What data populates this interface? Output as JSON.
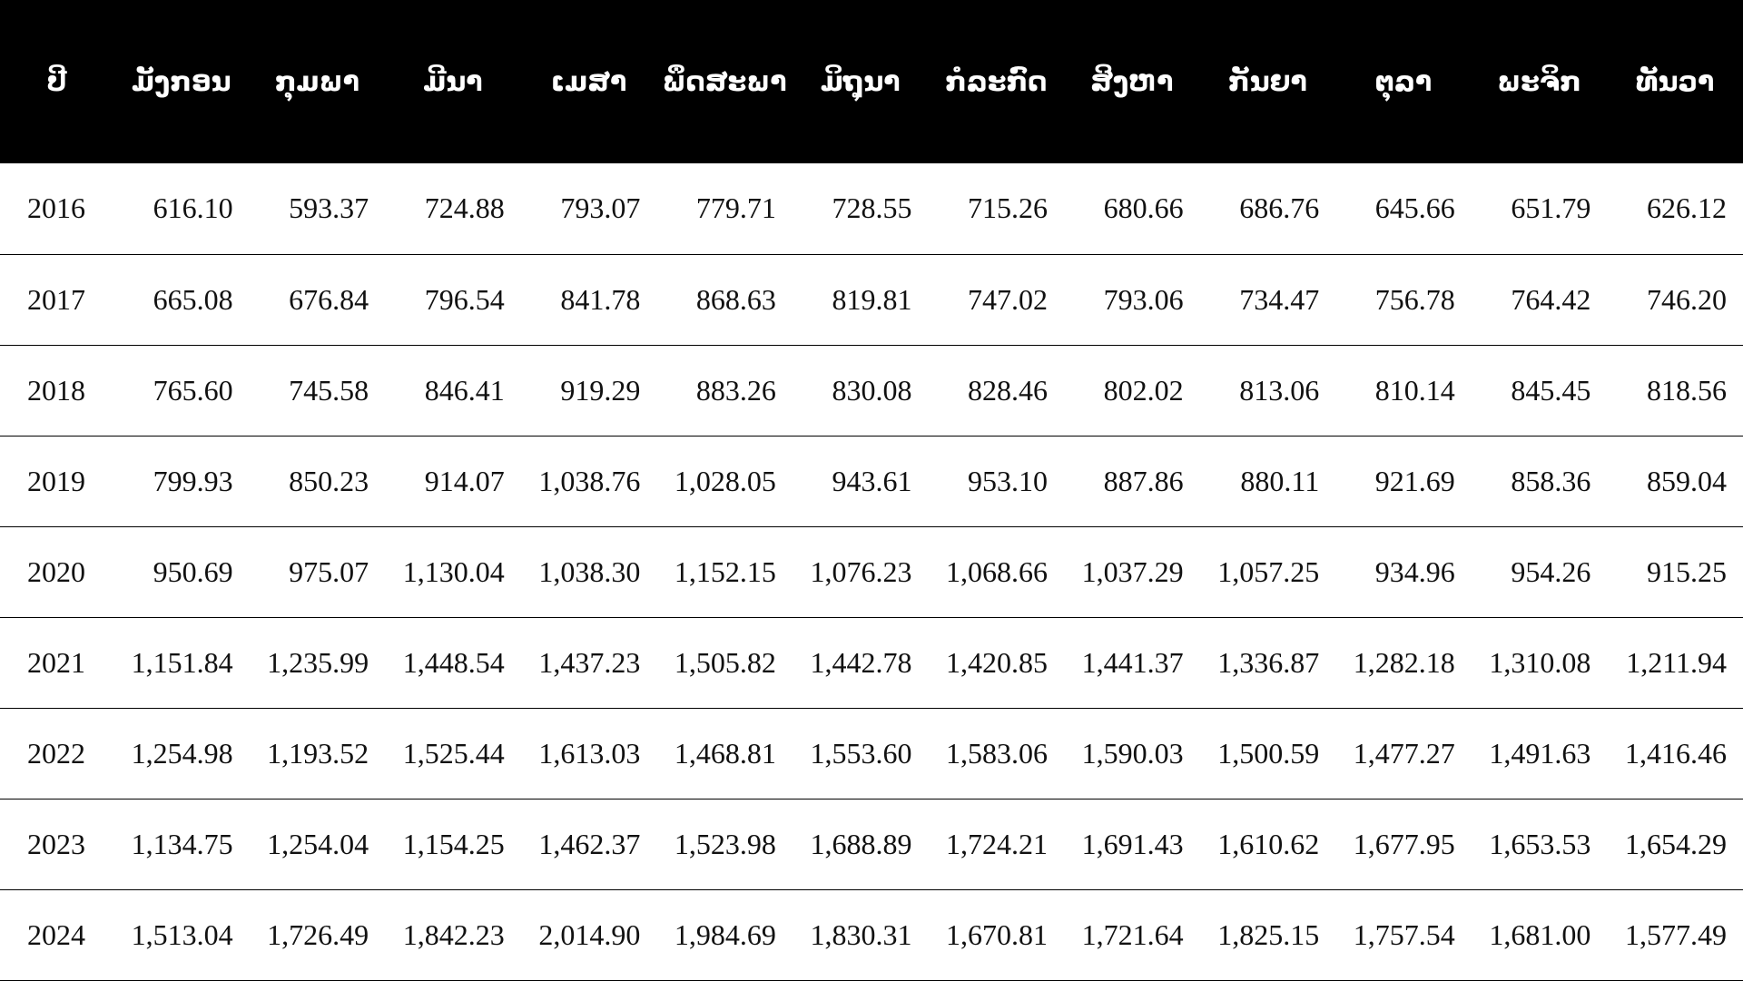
{
  "colors": {
    "header_bg": "#000000",
    "header_text": "#ffffff",
    "row_border": "#000000",
    "cell_text": "#111111"
  },
  "chart_data": {
    "type": "table",
    "columns": [
      "ປີ",
      "ມັງກອນ",
      "ກຸມພາ",
      "ມີນາ",
      "ເມສາ",
      "ພຶດສະພາ",
      "ມິຖຸນາ",
      "ກໍລະກົດ",
      "ສິງຫາ",
      "ກັນຍາ",
      "ຕຸລາ",
      "ພະຈິກ",
      "ທັນວາ"
    ],
    "rows": [
      [
        "2016",
        "616.10",
        "593.37",
        "724.88",
        "793.07",
        "779.71",
        "728.55",
        "715.26",
        "680.66",
        "686.76",
        "645.66",
        "651.79",
        "626.12"
      ],
      [
        "2017",
        "665.08",
        "676.84",
        "796.54",
        "841.78",
        "868.63",
        "819.81",
        "747.02",
        "793.06",
        "734.47",
        "756.78",
        "764.42",
        "746.20"
      ],
      [
        "2018",
        "765.60",
        "745.58",
        "846.41",
        "919.29",
        "883.26",
        "830.08",
        "828.46",
        "802.02",
        "813.06",
        "810.14",
        "845.45",
        "818.56"
      ],
      [
        "2019",
        "799.93",
        "850.23",
        "914.07",
        "1,038.76",
        "1,028.05",
        "943.61",
        "953.10",
        "887.86",
        "880.11",
        "921.69",
        "858.36",
        "859.04"
      ],
      [
        "2020",
        "950.69",
        "975.07",
        "1,130.04",
        "1,038.30",
        "1,152.15",
        "1,076.23",
        "1,068.66",
        "1,037.29",
        "1,057.25",
        "934.96",
        "954.26",
        "915.25"
      ],
      [
        "2021",
        "1,151.84",
        "1,235.99",
        "1,448.54",
        "1,437.23",
        "1,505.82",
        "1,442.78",
        "1,420.85",
        "1,441.37",
        "1,336.87",
        "1,282.18",
        "1,310.08",
        "1,211.94"
      ],
      [
        "2022",
        "1,254.98",
        "1,193.52",
        "1,525.44",
        "1,613.03",
        "1,468.81",
        "1,553.60",
        "1,583.06",
        "1,590.03",
        "1,500.59",
        "1,477.27",
        "1,491.63",
        "1,416.46"
      ],
      [
        "2023",
        "1,134.75",
        "1,254.04",
        "1,154.25",
        "1,462.37",
        "1,523.98",
        "1,688.89",
        "1,724.21",
        "1,691.43",
        "1,610.62",
        "1,677.95",
        "1,653.53",
        "1,654.29"
      ],
      [
        "2024",
        "1,513.04",
        "1,726.49",
        "1,842.23",
        "2,014.90",
        "1,984.69",
        "1,830.31",
        "1,670.81",
        "1,721.64",
        "1,825.15",
        "1,757.54",
        "1,681.00",
        "1,577.49"
      ]
    ]
  }
}
